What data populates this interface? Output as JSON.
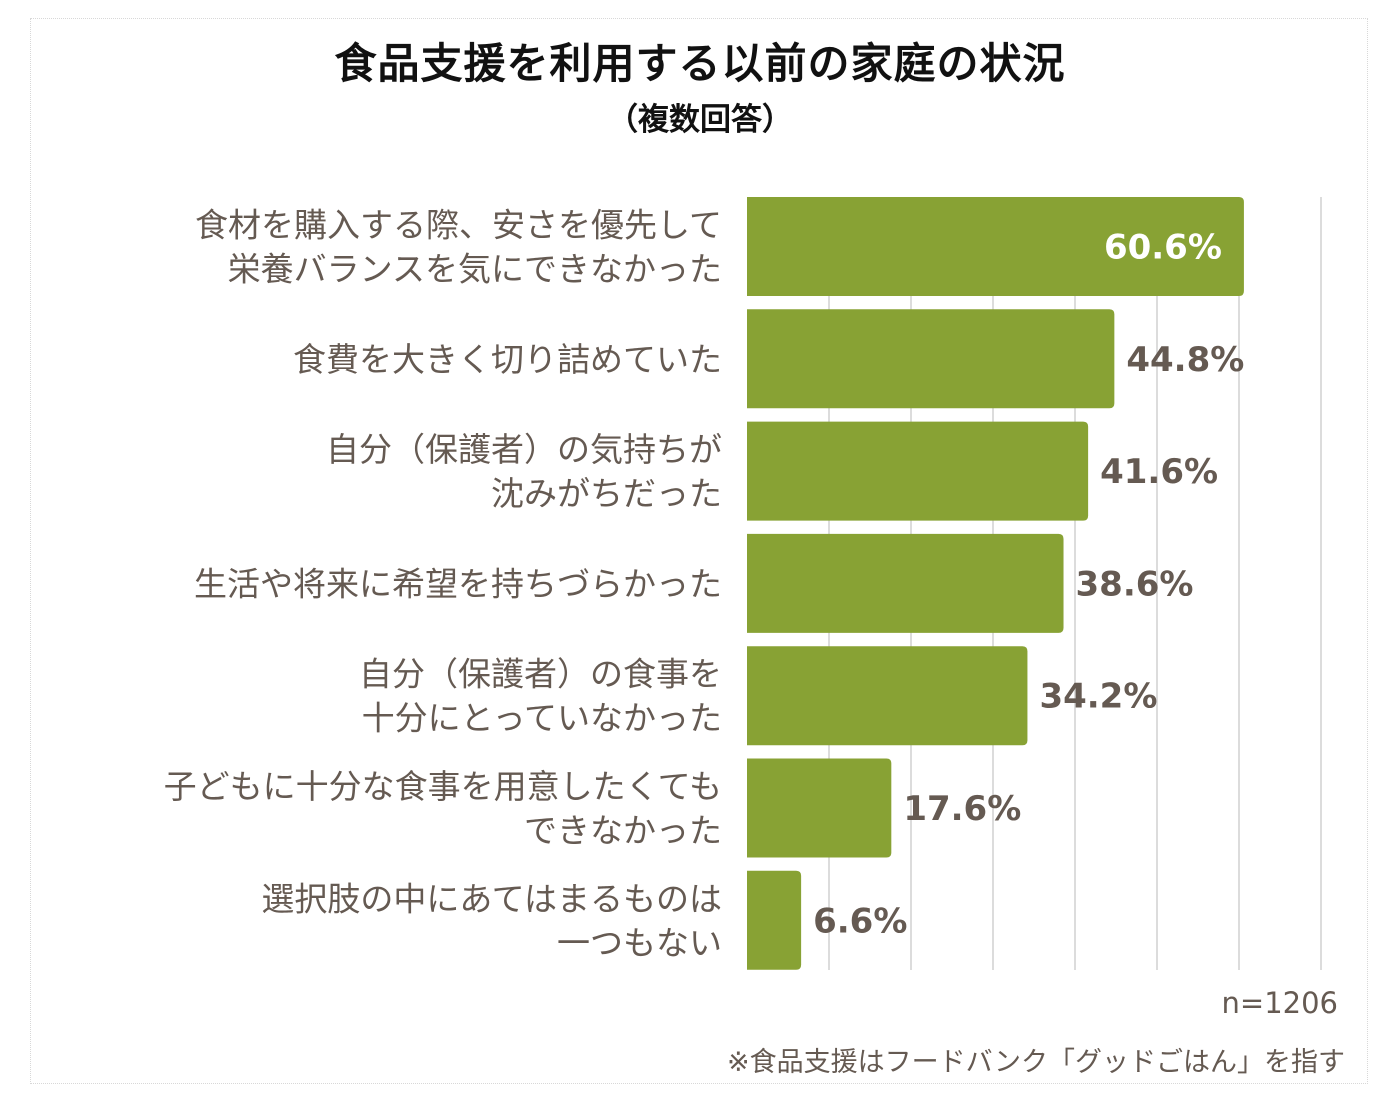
{
  "chart_data": {
    "type": "bar",
    "orientation": "horizontal",
    "title": "食品支援を利用する以前の家庭の状況",
    "subtitle": "（複数回答）",
    "categories": [
      [
        "食材を購入する際、安さを優先して",
        "栄養バランスを気にできなかった"
      ],
      [
        "食費を大きく切り詰めていた"
      ],
      [
        "自分（保護者）の気持ちが",
        "沈みがちだった"
      ],
      [
        "生活や将来に希望を持ちづらかった"
      ],
      [
        "自分（保護者）の食事を",
        "十分にとっていなかった"
      ],
      [
        "子どもに十分な食事を用意したくても",
        "できなかった"
      ],
      [
        "選択肢の中にあてはまるものは",
        "一つもない"
      ]
    ],
    "values": [
      60.6,
      44.8,
      41.6,
      38.6,
      34.2,
      17.6,
      6.6
    ],
    "value_labels": [
      "60.6%",
      "44.8%",
      "41.6%",
      "38.6%",
      "34.2%",
      "17.6%",
      "6.6%"
    ],
    "xlim": [
      0,
      70
    ],
    "grid_step": 10,
    "grid": true,
    "colors": {
      "bar": "#88a234",
      "text": "#655a52",
      "inner_label": "#ffffff"
    }
  },
  "footer": {
    "sample_size": "n=1206",
    "note": "※食品支援はフードバンク「グッドごはん」を指す"
  }
}
